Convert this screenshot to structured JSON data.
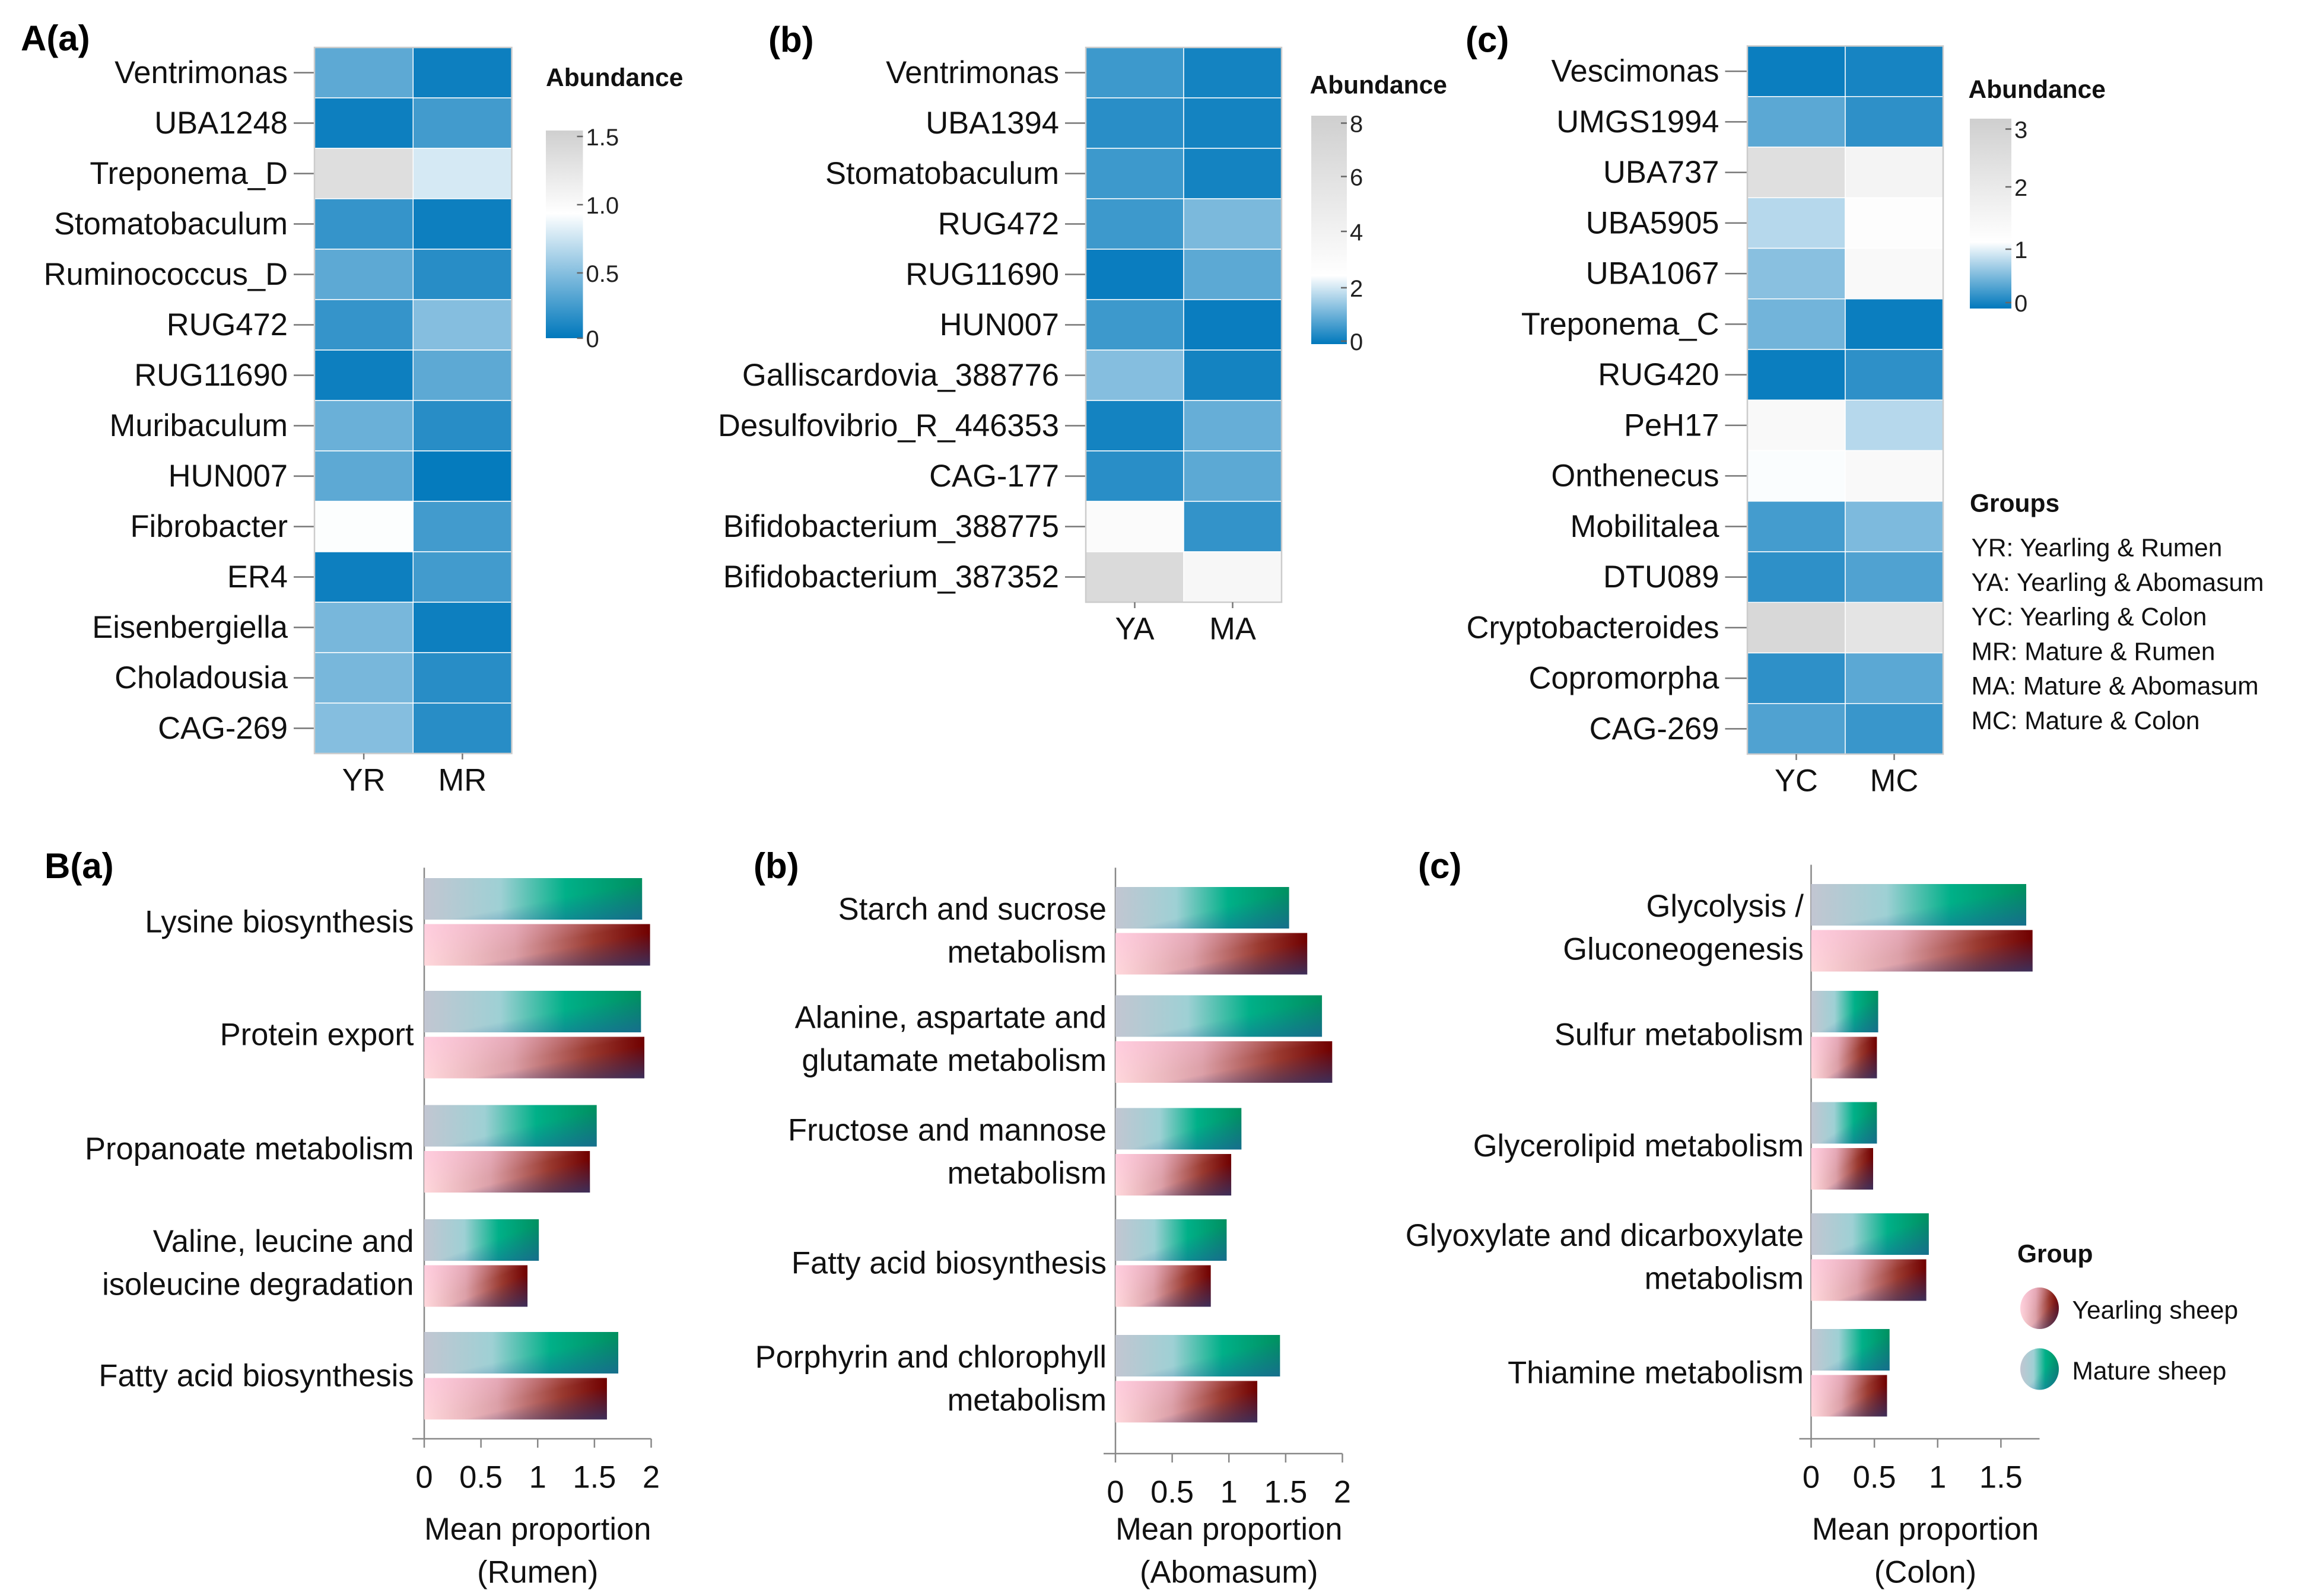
{
  "chart_data": [
    {
      "type": "heatmap",
      "panel_label": "A(a)",
      "rows": [
        "Ventrimonas",
        "UBA1248",
        "Treponema_D",
        "Stomatobaculum",
        "Ruminococcus_D",
        "RUG472",
        "RUG11690",
        "Muribaculum",
        "HUN007",
        "Fibrobacter",
        "ER4",
        "Eisenbergiella",
        "Choladousia",
        "CAG-269"
      ],
      "columns": [
        "YR",
        "MR"
      ],
      "values": [
        [
          0.35,
          0.05
        ],
        [
          0.05,
          0.25
        ],
        [
          1.4,
          0.8
        ],
        [
          0.2,
          0.05
        ],
        [
          0.35,
          0.15
        ],
        [
          0.2,
          0.5
        ],
        [
          0.05,
          0.35
        ],
        [
          0.4,
          0.15
        ],
        [
          0.35,
          0.02
        ],
        [
          0.95,
          0.25
        ],
        [
          0.05,
          0.25
        ],
        [
          0.45,
          0.05
        ],
        [
          0.45,
          0.15
        ],
        [
          0.5,
          0.15
        ]
      ],
      "legend_title": "Abundance",
      "legend_ticks": [
        "1.5",
        "1.0",
        "0.5",
        "0"
      ],
      "range": [
        0,
        1.6
      ]
    },
    {
      "type": "heatmap",
      "panel_label": "(b)",
      "rows": [
        "Ventrimonas",
        "UBA1394",
        "Stomatobaculum",
        "RUG472",
        "RUG11690",
        "HUN007",
        "Galliscardovia_388776",
        "Desulfovibrio_R_446353",
        "CAG-177",
        "Bifidobacterium_388775",
        "Bifidobacterium_387352"
      ],
      "columns": [
        "YA",
        "MA"
      ],
      "values": [
        [
          0.6,
          0.2
        ],
        [
          0.4,
          0.2
        ],
        [
          0.6,
          0.2
        ],
        [
          0.6,
          1.2
        ],
        [
          0.1,
          0.9
        ],
        [
          0.6,
          0.1
        ],
        [
          1.3,
          0.2
        ],
        [
          0.2,
          1.0
        ],
        [
          0.4,
          0.9
        ],
        [
          3.0,
          0.5
        ],
        [
          7.0,
          3.5
        ]
      ],
      "legend_title": "Abundance",
      "legend_ticks": [
        "8",
        "6",
        "4",
        "2",
        "0"
      ],
      "range": [
        0,
        8.3
      ]
    },
    {
      "type": "heatmap",
      "panel_label": "(c)",
      "rows": [
        "Vescimonas",
        "UMGS1994",
        "UBA737",
        "UBA5905",
        "UBA1067",
        "Treponema_C",
        "RUG420",
        "PeH17",
        "Onthenecus",
        "Mobilitalea",
        "DTU089",
        "Cryptobacteroides",
        "Copromorpha",
        "CAG-269"
      ],
      "columns": [
        "YC",
        "MC"
      ],
      "values": [
        [
          0.05,
          0.1
        ],
        [
          0.4,
          0.2
        ],
        [
          2.5,
          1.6
        ],
        [
          0.8,
          1.2
        ],
        [
          0.6,
          1.4
        ],
        [
          0.5,
          0.05
        ],
        [
          0.05,
          0.2
        ],
        [
          1.4,
          0.8
        ],
        [
          1.1,
          1.4
        ],
        [
          0.3,
          0.55
        ],
        [
          0.2,
          0.35
        ],
        [
          2.8,
          2.3
        ],
        [
          0.2,
          0.4
        ],
        [
          0.35,
          0.25
        ]
      ],
      "legend_title": "Abundance",
      "legend_ticks": [
        "3",
        "2",
        "1",
        "0"
      ],
      "range": [
        0,
        3.2
      ]
    },
    {
      "type": "bar",
      "panel_label": "B(a)",
      "categories": [
        [
          "Lysine biosynthesis"
        ],
        [
          "Protein export"
        ],
        [
          "Propanoate metabolism"
        ],
        [
          "Valine, leucine and",
          "isoleucine degradation"
        ],
        [
          "Fatty acid biosynthesis"
        ]
      ],
      "series": [
        {
          "name": "Mature sheep",
          "values": [
            1.92,
            1.91,
            1.52,
            1.01,
            1.71
          ]
        },
        {
          "name": "Yearling sheep",
          "values": [
            1.99,
            1.94,
            1.46,
            0.91,
            1.61
          ]
        }
      ],
      "xticks": [
        "0",
        "0.5",
        "1",
        "1.5",
        "2"
      ],
      "xlim": [
        0,
        2
      ],
      "xlabel": [
        "Mean proportion",
        "(Rumen)"
      ]
    },
    {
      "type": "bar",
      "panel_label": "(b)",
      "categories": [
        [
          "Starch and sucrose",
          "metabolism"
        ],
        [
          "Alanine, aspartate and",
          "glutamate metabolism"
        ],
        [
          "Fructose and mannose",
          "metabolism"
        ],
        [
          "Fatty acid biosynthesis"
        ],
        [
          "Porphyrin and chlorophyll",
          "metabolism"
        ]
      ],
      "series": [
        {
          "name": "Mature sheep",
          "values": [
            1.53,
            1.82,
            1.11,
            0.98,
            1.45
          ]
        },
        {
          "name": "Yearling sheep",
          "values": [
            1.69,
            1.91,
            1.02,
            0.84,
            1.25
          ]
        }
      ],
      "xticks": [
        "0",
        "0.5",
        "1",
        "1.5",
        "2"
      ],
      "xlim": [
        0,
        2
      ],
      "xlabel": [
        "Mean proportion",
        "(Abomasum)"
      ]
    },
    {
      "type": "bar",
      "panel_label": "(c)",
      "categories": [
        [
          "Glycolysis /",
          "Gluconeogenesis"
        ],
        [
          "Sulfur metabolism"
        ],
        [
          "Glycerolipid metabolism"
        ],
        [
          "Glyoxylate and dicarboxylate",
          "metabolism"
        ],
        [
          "Thiamine metabolism"
        ]
      ],
      "series": [
        {
          "name": "Mature sheep",
          "values": [
            1.7,
            0.53,
            0.52,
            0.93,
            0.62
          ]
        },
        {
          "name": "Yearling sheep",
          "values": [
            1.75,
            0.52,
            0.49,
            0.91,
            0.6
          ]
        }
      ],
      "xticks": [
        "0",
        "0.5",
        "1",
        "1.5"
      ],
      "xlim": [
        0,
        1.8
      ],
      "xlabel": [
        "Mean proportion",
        "(Colon)"
      ]
    }
  ],
  "groups_legend": {
    "title": "Groups",
    "items": [
      "YR: Yearling & Rumen",
      "YA: Yearling & Abomasum",
      "YC: Yearling & Colon",
      "MR: Mature & Rumen",
      "MA: Mature & Abomasum",
      "MC: Mature & Colon"
    ]
  },
  "group_legend": {
    "title": "Group",
    "items": [
      "Yearling sheep",
      "Mature sheep"
    ]
  },
  "colors": {
    "low": "#0078bc",
    "mid": "#ffffff",
    "high": "#cfcfcf",
    "mature_end": "#00a070",
    "yearling_end": "#700000"
  }
}
